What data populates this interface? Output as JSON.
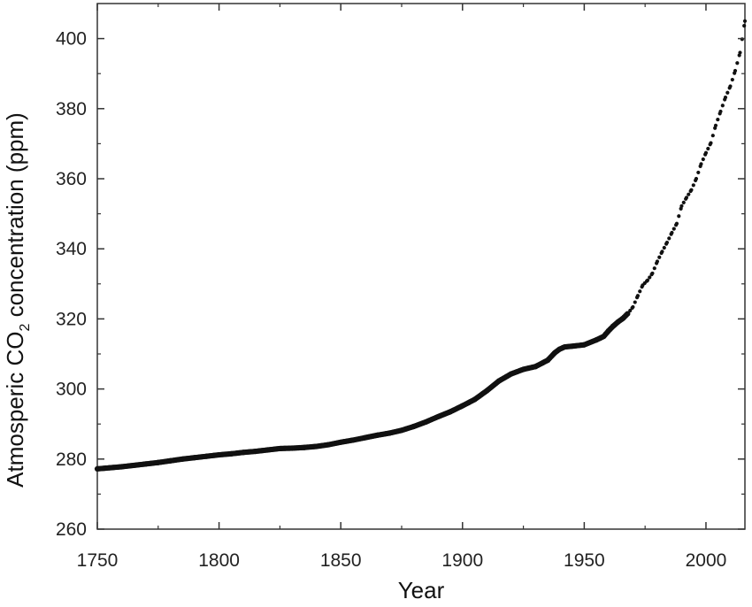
{
  "chart_data": {
    "type": "scatter",
    "title": "",
    "xlabel": "Year",
    "ylabel": {
      "prefix": "Atmosperic CO",
      "subscript": "2",
      "suffix": " concentration (ppm)"
    },
    "xlim": [
      1750,
      2016
    ],
    "ylim": [
      260,
      410
    ],
    "xticks": [
      1750,
      1800,
      1850,
      1900,
      1950,
      2000
    ],
    "yticks": [
      260,
      280,
      300,
      320,
      340,
      360,
      380,
      400
    ],
    "grid": false,
    "legend": "none",
    "colors": {
      "marker": "#111111",
      "axis": "#333333"
    },
    "series": [
      {
        "points": [
          [
            1750,
            277.2
          ],
          [
            1755,
            277.5
          ],
          [
            1760,
            277.8
          ],
          [
            1765,
            278.2
          ],
          [
            1770,
            278.6
          ],
          [
            1775,
            279.0
          ],
          [
            1780,
            279.5
          ],
          [
            1785,
            280.0
          ],
          [
            1790,
            280.4
          ],
          [
            1795,
            280.8
          ],
          [
            1800,
            281.2
          ],
          [
            1805,
            281.5
          ],
          [
            1810,
            281.9
          ],
          [
            1815,
            282.2
          ],
          [
            1820,
            282.6
          ],
          [
            1825,
            283.0
          ],
          [
            1830,
            283.1
          ],
          [
            1835,
            283.3
          ],
          [
            1840,
            283.6
          ],
          [
            1845,
            284.1
          ],
          [
            1850,
            284.8
          ],
          [
            1855,
            285.4
          ],
          [
            1860,
            286.1
          ],
          [
            1865,
            286.8
          ],
          [
            1870,
            287.4
          ],
          [
            1875,
            288.2
          ],
          [
            1880,
            289.3
          ],
          [
            1885,
            290.6
          ],
          [
            1890,
            292.1
          ],
          [
            1895,
            293.5
          ],
          [
            1900,
            295.2
          ],
          [
            1905,
            297.0
          ],
          [
            1910,
            299.5
          ],
          [
            1915,
            302.3
          ],
          [
            1920,
            304.3
          ],
          [
            1925,
            305.6
          ],
          [
            1930,
            306.4
          ],
          [
            1935,
            308.2
          ],
          [
            1938,
            310.4
          ],
          [
            1940,
            311.4
          ],
          [
            1942,
            312.0
          ],
          [
            1945,
            312.2
          ],
          [
            1950,
            312.6
          ],
          [
            1955,
            314.0
          ],
          [
            1958,
            315.0
          ],
          [
            1960,
            316.6
          ],
          [
            1962,
            318.0
          ],
          [
            1964,
            319.2
          ],
          [
            1966,
            320.2
          ],
          [
            1968,
            321.6
          ],
          [
            1970,
            323.4
          ],
          [
            1972,
            326.6
          ],
          [
            1974,
            329.6
          ],
          [
            1976,
            331.0
          ],
          [
            1978,
            333.0
          ],
          [
            1980,
            336.4
          ],
          [
            1982,
            339.2
          ],
          [
            1984,
            341.8
          ],
          [
            1986,
            344.6
          ],
          [
            1988,
            347.2
          ],
          [
            1990,
            352.2
          ],
          [
            1992,
            354.6
          ],
          [
            1994,
            356.8
          ],
          [
            1996,
            360.0
          ],
          [
            1998,
            364.2
          ],
          [
            2000,
            367.4
          ],
          [
            2002,
            370.2
          ],
          [
            2004,
            375.2
          ],
          [
            2006,
            379.2
          ],
          [
            2008,
            383.2
          ],
          [
            2010,
            386.4
          ],
          [
            2012,
            390.8
          ],
          [
            2014,
            396.0
          ],
          [
            2016,
            405.0
          ]
        ]
      }
    ]
  }
}
